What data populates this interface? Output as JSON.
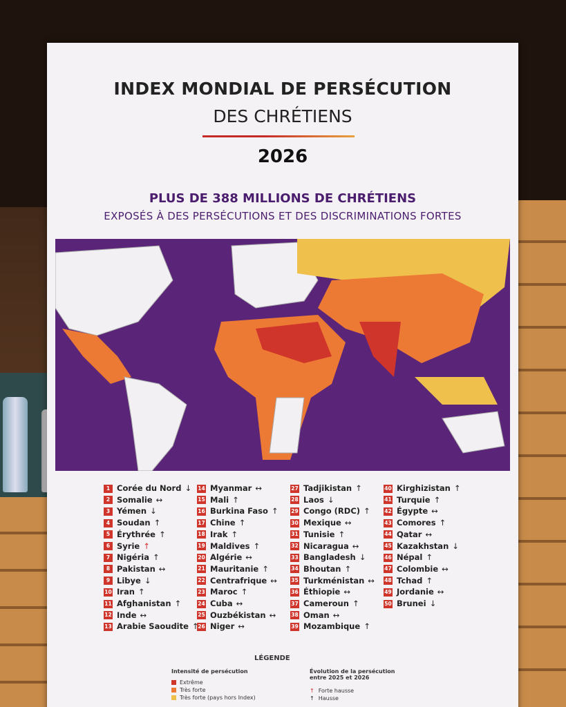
{
  "header": {
    "title": "INDEX MONDIAL DE PERSÉCUTION",
    "title_line2": "DES CHRÉTIENS",
    "year": "2026",
    "headline": "PLUS DE 388 MILLIONS DE CHRÉTIENS",
    "subheadline": "EXPOSÉS À DES PERSÉCUTIONS ET DES DISCRIMINATIONS FORTES"
  },
  "countries": [
    {
      "rank": "1",
      "name": "Corée du Nord",
      "trend": "↓"
    },
    {
      "rank": "2",
      "name": "Somalie",
      "trend": "↔"
    },
    {
      "rank": "3",
      "name": "Yémen",
      "trend": "↓"
    },
    {
      "rank": "4",
      "name": "Soudan",
      "trend": "↑"
    },
    {
      "rank": "5",
      "name": "Érythrée",
      "trend": "↑"
    },
    {
      "rank": "6",
      "name": "Syrie",
      "trend": "↑",
      "trend_color": "#d32f2f"
    },
    {
      "rank": "7",
      "name": "Nigéria",
      "trend": "↑"
    },
    {
      "rank": "8",
      "name": "Pakistan",
      "trend": "↔"
    },
    {
      "rank": "9",
      "name": "Libye",
      "trend": "↓"
    },
    {
      "rank": "10",
      "name": "Iran",
      "trend": "↑"
    },
    {
      "rank": "11",
      "name": "Afghanistan",
      "trend": "↑"
    },
    {
      "rank": "12",
      "name": "Inde",
      "trend": "↔"
    },
    {
      "rank": "13",
      "name": "Arabie Saoudite",
      "trend": "↑"
    },
    {
      "rank": "14",
      "name": "Myanmar",
      "trend": "↔"
    },
    {
      "rank": "15",
      "name": "Mali",
      "trend": "↑"
    },
    {
      "rank": "16",
      "name": "Burkina Faso",
      "trend": "↑"
    },
    {
      "rank": "17",
      "name": "Chine",
      "trend": "↑"
    },
    {
      "rank": "18",
      "name": "Irak",
      "trend": "↑"
    },
    {
      "rank": "19",
      "name": "Maldives",
      "trend": "↑"
    },
    {
      "rank": "20",
      "name": "Algérie",
      "trend": "↔"
    },
    {
      "rank": "21",
      "name": "Mauritanie",
      "trend": "↑"
    },
    {
      "rank": "22",
      "name": "Centrafrique",
      "trend": "↔"
    },
    {
      "rank": "23",
      "name": "Maroc",
      "trend": "↑"
    },
    {
      "rank": "24",
      "name": "Cuba",
      "trend": "↔"
    },
    {
      "rank": "25",
      "name": "Ouzbékistan",
      "trend": "↔"
    },
    {
      "rank": "26",
      "name": "Niger",
      "trend": "↔"
    },
    {
      "rank": "27",
      "name": "Tadjikistan",
      "trend": "↑"
    },
    {
      "rank": "28",
      "name": "Laos",
      "trend": "↓"
    },
    {
      "rank": "29",
      "name": "Congo (RDC)",
      "trend": "↑"
    },
    {
      "rank": "30",
      "name": "Mexique",
      "trend": "↔"
    },
    {
      "rank": "31",
      "name": "Tunisie",
      "trend": "↑"
    },
    {
      "rank": "32",
      "name": "Nicaragua",
      "trend": "↔"
    },
    {
      "rank": "33",
      "name": "Bangladesh",
      "trend": "↓"
    },
    {
      "rank": "34",
      "name": "Bhoutan",
      "trend": "↑"
    },
    {
      "rank": "35",
      "name": "Turkménistan",
      "trend": "↔"
    },
    {
      "rank": "36",
      "name": "Éthiopie",
      "trend": "↔"
    },
    {
      "rank": "37",
      "name": "Cameroun",
      "trend": "↑"
    },
    {
      "rank": "38",
      "name": "Oman",
      "trend": "↔"
    },
    {
      "rank": "39",
      "name": "Mozambique",
      "trend": "↑"
    },
    {
      "rank": "40",
      "name": "Kirghizistan",
      "trend": "↑"
    },
    {
      "rank": "41",
      "name": "Turquie",
      "trend": "↑"
    },
    {
      "rank": "42",
      "name": "Égypte",
      "trend": "↔"
    },
    {
      "rank": "43",
      "name": "Comores",
      "trend": "↑"
    },
    {
      "rank": "44",
      "name": "Qatar",
      "trend": "↔"
    },
    {
      "rank": "45",
      "name": "Kazakhstan",
      "trend": "↓"
    },
    {
      "rank": "46",
      "name": "Népal",
      "trend": "↑"
    },
    {
      "rank": "47",
      "name": "Colombie",
      "trend": "↔"
    },
    {
      "rank": "48",
      "name": "Tchad",
      "trend": "↑"
    },
    {
      "rank": "49",
      "name": "Jordanie",
      "trend": "↔"
    },
    {
      "rank": "50",
      "name": "Brunei",
      "trend": "↓"
    }
  ],
  "legend": {
    "title": "LÉGENDE",
    "intensity_title": "Intensité de persécution",
    "intensity": [
      {
        "label": "Extrême",
        "color": "#d0352b"
      },
      {
        "label": "Très forte",
        "color": "#ec7a35"
      },
      {
        "label": "Très forte (pays hors Index)",
        "color": "#efc14c"
      }
    ],
    "trend_title": "Évolution de la persécution entre 2025 et 2026",
    "trends": [
      {
        "symbol": "↑",
        "label": "Forte hausse",
        "color": "#d32f2f"
      },
      {
        "symbol": "↑",
        "label": "Hausse",
        "color": "#222"
      }
    ]
  }
}
